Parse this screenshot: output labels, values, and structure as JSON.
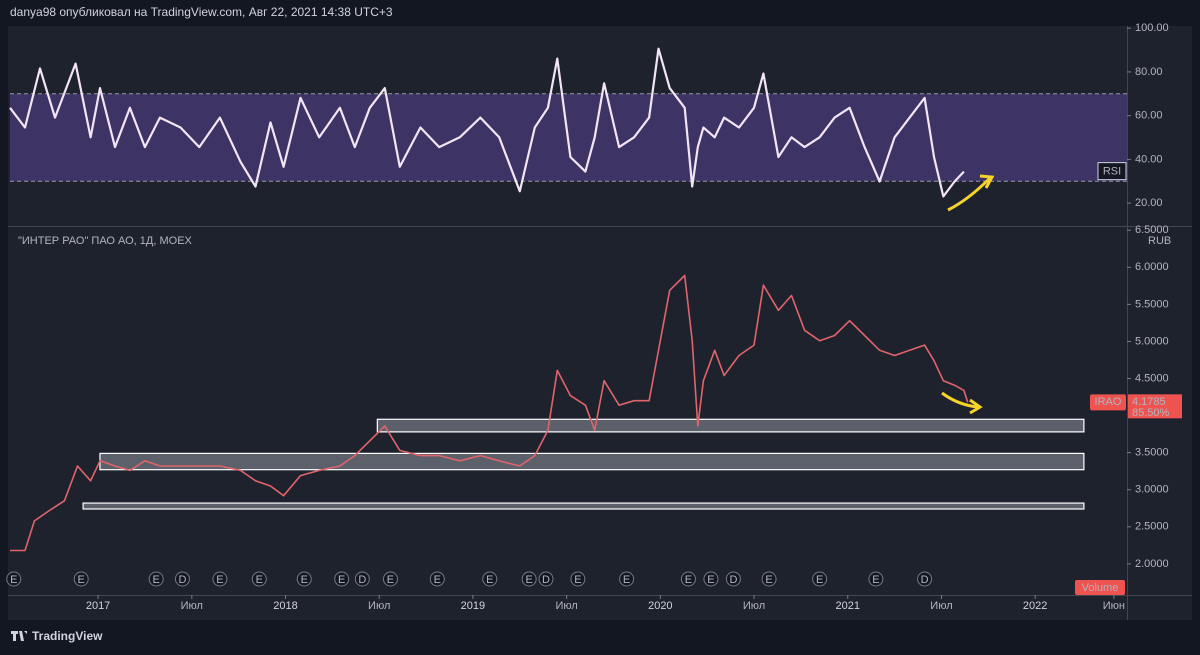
{
  "header": {
    "text": "danya98 опубликовал на TradingView.com, Авг 22, 2021 14:38 UTC+3"
  },
  "footer": {
    "brand": "TradingView"
  },
  "chart_data": [
    {
      "type": "line",
      "x": [
        2016.53,
        2016.61,
        2016.69,
        2016.77,
        2016.88,
        2016.96,
        2017.01,
        2017.09,
        2017.17,
        2017.25,
        2017.33,
        2017.44,
        2017.54,
        2017.65,
        2017.76,
        2017.84,
        2017.92,
        2017.99,
        2018.08,
        2018.18,
        2018.29,
        2018.37,
        2018.45,
        2018.53,
        2018.61,
        2018.72,
        2018.82,
        2018.93,
        2019.04,
        2019.14,
        2019.25,
        2019.33,
        2019.4,
        2019.45,
        2019.52,
        2019.6,
        2019.65,
        2019.7,
        2019.78,
        2019.86,
        2019.94,
        2019.99,
        2020.05,
        2020.13,
        2020.17,
        2020.2,
        2020.23,
        2020.29,
        2020.34,
        2020.42,
        2020.5,
        2020.55,
        2020.63,
        2020.7,
        2020.77,
        2020.85,
        2020.93,
        2021.01,
        2021.09,
        2021.17,
        2021.25,
        2021.33,
        2021.41,
        2021.46,
        2021.51,
        2021.57,
        2021.62
      ],
      "series": [
        {
          "name": "RSI",
          "color": "#f3e5f5",
          "values": [
            63.6,
            54.6,
            81.6,
            59.1,
            83.8,
            50.1,
            72.6,
            45.6,
            63.6,
            45.6,
            59.1,
            54.6,
            45.6,
            59.1,
            38.9,
            27.6,
            56.9,
            36.6,
            68.1,
            50.1,
            63.6,
            45.6,
            63.6,
            72.6,
            36.6,
            54.6,
            45.6,
            50.1,
            59.1,
            50.1,
            25.4,
            54.6,
            63.6,
            86.1,
            41.1,
            34.4,
            50.1,
            74.8,
            45.6,
            50.1,
            59.1,
            90.6,
            72.6,
            63.6,
            27.6,
            45.6,
            54.6,
            50.1,
            59.1,
            54.6,
            63.6,
            79.3,
            41.1,
            50.1,
            45.6,
            50.1,
            59.1,
            63.6,
            45.6,
            29.9,
            50.1,
            59.1,
            68.1,
            41.1,
            23.1,
            29.9,
            34.4
          ]
        }
      ],
      "band": [
        30,
        70
      ],
      "band_color": "#4a3a78",
      "xlim": [
        2016.53,
        2022.49
      ],
      "ylim": [
        10,
        101
      ],
      "yticks": [
        {
          "value": 100,
          "label": "100.00"
        },
        {
          "value": 80,
          "label": "80.00"
        },
        {
          "value": 60,
          "label": "60.00"
        },
        {
          "value": 40,
          "label": "40.00"
        },
        {
          "value": 20,
          "label": "20.00"
        }
      ]
    },
    {
      "type": "line",
      "title": "\"ИНТЕР РАО\" ПАО АО, 1Д, MOEX",
      "unit": "RUB",
      "x": [
        2016.53,
        2016.61,
        2016.66,
        2016.74,
        2016.82,
        2016.89,
        2016.96,
        2017.01,
        2017.09,
        2017.17,
        2017.25,
        2017.33,
        2017.44,
        2017.54,
        2017.65,
        2017.76,
        2017.84,
        2017.92,
        2017.99,
        2018.08,
        2018.18,
        2018.29,
        2018.37,
        2018.45,
        2018.53,
        2018.61,
        2018.72,
        2018.82,
        2018.93,
        2019.04,
        2019.14,
        2019.25,
        2019.33,
        2019.4,
        2019.45,
        2019.52,
        2019.6,
        2019.65,
        2019.7,
        2019.78,
        2019.86,
        2019.94,
        2019.99,
        2020.05,
        2020.13,
        2020.17,
        2020.2,
        2020.23,
        2020.29,
        2020.34,
        2020.42,
        2020.5,
        2020.55,
        2020.63,
        2020.7,
        2020.77,
        2020.85,
        2020.93,
        2021.01,
        2021.09,
        2021.17,
        2021.25,
        2021.33,
        2021.41,
        2021.46,
        2021.51,
        2021.57,
        2021.62,
        2021.64
      ],
      "series": [
        {
          "name": "IRAO",
          "color": "#e0646c",
          "values": [
            2.18,
            2.18,
            2.58,
            2.72,
            2.85,
            3.32,
            3.12,
            3.39,
            3.32,
            3.26,
            3.39,
            3.32,
            3.32,
            3.32,
            3.32,
            3.26,
            3.12,
            3.05,
            2.92,
            3.19,
            3.26,
            3.32,
            3.46,
            3.66,
            3.86,
            3.53,
            3.46,
            3.46,
            3.39,
            3.46,
            3.39,
            3.32,
            3.46,
            3.8,
            4.61,
            4.27,
            4.14,
            3.8,
            4.47,
            4.14,
            4.2,
            4.2,
            4.88,
            5.69,
            5.89,
            5.01,
            3.86,
            4.47,
            4.88,
            4.54,
            4.81,
            4.95,
            5.76,
            5.42,
            5.62,
            5.15,
            5.01,
            5.08,
            5.28,
            5.08,
            4.88,
            4.81,
            4.88,
            4.95,
            4.74,
            4.47,
            4.41,
            4.34,
            4.1785
          ]
        }
      ],
      "change": {
        "value": 85.5,
        "label": "85.50%"
      },
      "zones": [
        {
          "x0": 2018.49,
          "x1": 2022.26,
          "low": 3.78,
          "high": 3.95
        },
        {
          "x0": 2017.01,
          "x1": 2022.26,
          "low": 3.27,
          "high": 3.49
        },
        {
          "x0": 2016.92,
          "x1": 2022.26,
          "low": 2.74,
          "high": 2.82
        }
      ],
      "events": {
        "x": [
          2016.55,
          2016.91,
          2017.31,
          2017.45,
          2017.65,
          2017.86,
          2018.1,
          2018.3,
          2018.41,
          2018.56,
          2018.81,
          2019.09,
          2019.3,
          2019.39,
          2019.56,
          2019.82,
          2020.15,
          2020.27,
          2020.39,
          2020.58,
          2020.85,
          2021.15,
          2021.41
        ],
        "labels": [
          "E",
          "E",
          "E",
          "D",
          "E",
          "E",
          "E",
          "E",
          "D",
          "E",
          "E",
          "E",
          "E",
          "D",
          "E",
          "E",
          "E",
          "E",
          "D",
          "E",
          "E",
          "E",
          "D"
        ]
      },
      "volume_label": "Volume",
      "xlim": [
        2016.53,
        2022.49
      ],
      "ylim": [
        1.58,
        6.53
      ],
      "xticks": [
        2017,
        {
          "value": 2017.5,
          "label": "Июл"
        },
        2018,
        {
          "value": 2018.5,
          "label": "Июл"
        },
        2019,
        {
          "value": 2019.5,
          "label": "Июл"
        },
        2020,
        {
          "value": 2020.5,
          "label": "Июл"
        },
        2021,
        {
          "value": 2021.5,
          "label": "Июл"
        },
        2022,
        {
          "value": 2022.42,
          "label": "Июн"
        }
      ],
      "yticks": [
        {
          "value": 6.5,
          "label": "6.5000"
        },
        {
          "value": 6,
          "label": "6.0000"
        },
        {
          "value": 5.5,
          "label": "5.5000"
        },
        {
          "value": 5,
          "label": "5.0000"
        },
        {
          "value": 4.5,
          "label": "4.5000"
        },
        {
          "value": 3.5,
          "label": "3.5000"
        },
        {
          "value": 3,
          "label": "3.0000"
        },
        {
          "value": 2.5,
          "label": "2.5000"
        },
        {
          "value": 2,
          "label": "2.0000"
        }
      ]
    }
  ]
}
